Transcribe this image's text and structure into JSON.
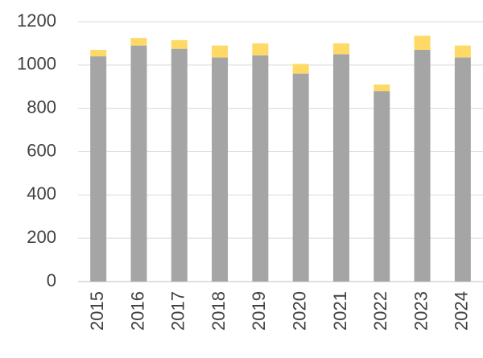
{
  "chart_data": {
    "type": "stacked-bar",
    "categories": [
      "2015",
      "2016",
      "2017",
      "2018",
      "2019",
      "2020",
      "2021",
      "2022",
      "2023",
      "2024"
    ],
    "series": [
      {
        "color": "#a5a5a5",
        "values": [
          1040,
          1090,
          1075,
          1035,
          1045,
          960,
          1050,
          880,
          1070,
          1035
        ]
      },
      {
        "color": "#ffd966",
        "values": [
          30,
          35,
          40,
          55,
          55,
          45,
          50,
          30,
          65,
          55
        ]
      }
    ],
    "ylim": [
      0,
      1200
    ],
    "yticks": [
      0,
      200,
      400,
      600,
      800,
      1000,
      1200
    ],
    "grid": true
  }
}
